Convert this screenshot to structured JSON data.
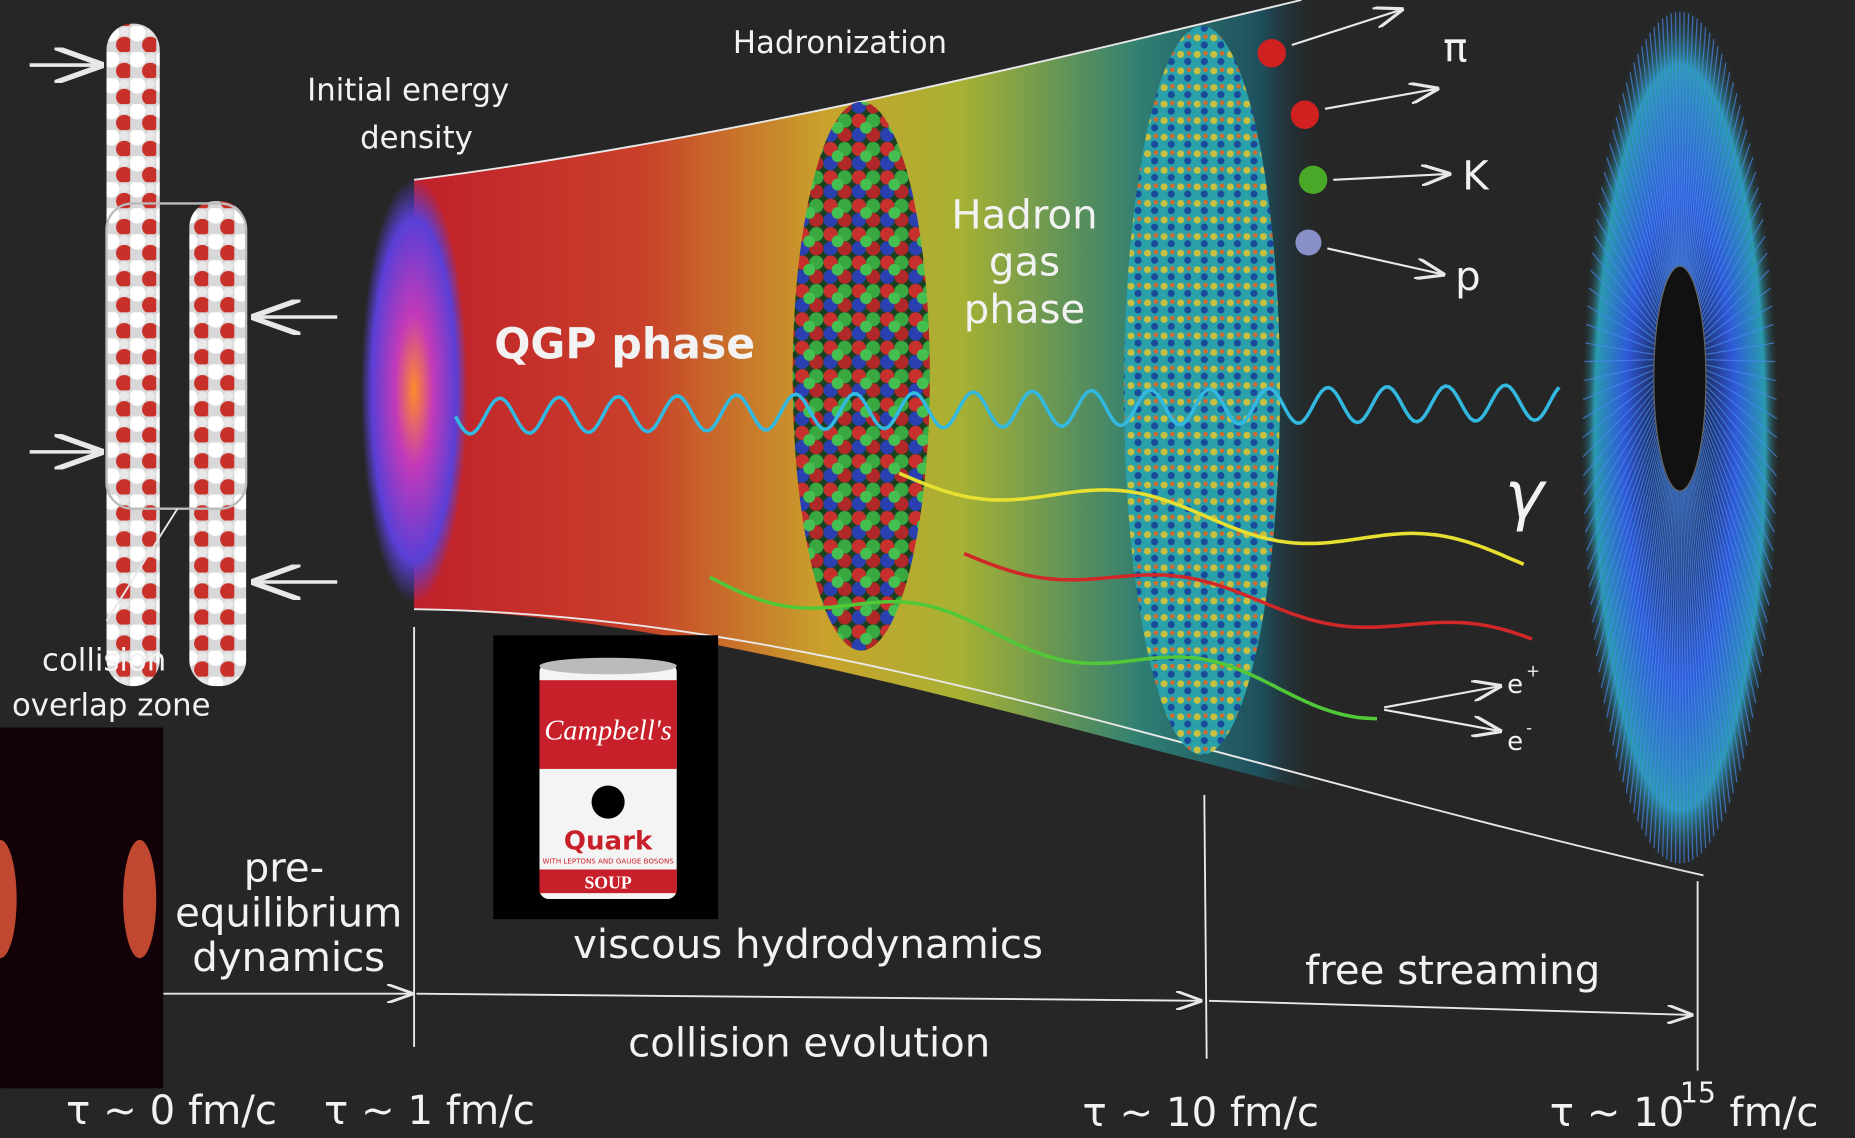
{
  "labels": {
    "hadronization": "Hadronization",
    "initial_energy_density": [
      "Initial energy",
      "density"
    ],
    "qgp_phase": "QGP phase",
    "hadron_gas_phase": [
      "Hadron",
      "gas",
      "phase"
    ],
    "collision_overlap_zone": [
      "collision",
      "overlap zone"
    ],
    "pre_equilibrium_dynamics": [
      "pre-",
      "equilibrium",
      "dynamics"
    ],
    "viscous_hydrodynamics": "viscous hydrodynamics",
    "free_streaming": "free streaming",
    "collision_evolution": "collision evolution"
  },
  "particles": {
    "pi": "π",
    "k": "K",
    "p": "p",
    "gamma": "γ",
    "e_plus": {
      "base": "e",
      "sup": "+"
    },
    "e_minus": {
      "base": "e",
      "sup": "-"
    }
  },
  "timeline": [
    {
      "base": "τ ~ 0 fm/c"
    },
    {
      "base": "τ ~ 1 fm/c"
    },
    {
      "base": "τ ~ 10 fm/c"
    },
    {
      "base": "τ ~ 10",
      "exp": "15",
      "unit": "fm/c"
    }
  ],
  "can": {
    "brand": "Campbell's",
    "name": "Quark",
    "subtitle": "WITH LEPTONS AND GAUGE BOSONS",
    "soup": "SOUP"
  }
}
